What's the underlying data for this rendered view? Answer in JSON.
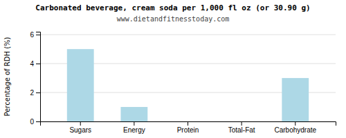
{
  "chart_data": {
    "type": "bar",
    "title": "Carbonated beverage, cream soda per 1,000 fl oz (or 30.90 g)",
    "subtitle": "www.dietandfitnesstoday.com",
    "categories": [
      "Sugars",
      "Energy",
      "Protein",
      "Total-Fat",
      "Carbohydrate"
    ],
    "values": [
      5.0,
      1.0,
      0.0,
      0.0,
      3.0
    ],
    "color": "#add8e6",
    "ylabel": "Percentage of RDH (%)",
    "ylim": [
      0,
      6.2
    ],
    "yticks": [
      0,
      2,
      4,
      6
    ],
    "grid": true
  }
}
